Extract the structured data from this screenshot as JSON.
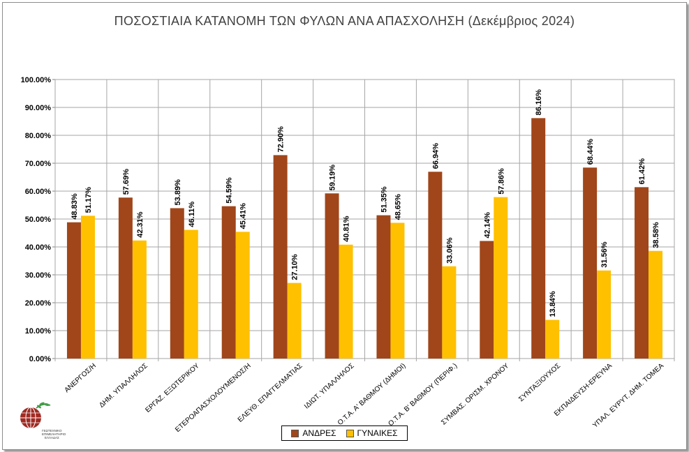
{
  "chart_data": {
    "type": "bar",
    "title": "ΠΟΣΟΣΤΙΑΙΑ ΚΑΤΑΝΟΜΗ ΤΩΝ ΦΥΛΩΝ ΑΝΑ ΑΠΑΣΧΟΛΗΣΗ (Δεκέμβριος 2024)",
    "categories": [
      "ΑΝΕΡΓΟΣ/Η",
      "ΔΗΜ. ΥΠΑΛΛΗΛΟΣ",
      "ΕΡΓΑΖ. ΕΞΩΤΕΡΙΚΟΥ",
      "ΕΤΕΡΟΑΠΑΣΧΟΛΟΥΜΕΝΟΣ/Η",
      "ΕΛΕΥΘ. ΕΠΑΓΓΕΛΜΑΤΙΑΣ",
      "ΙΔΙΩΤ. ΥΠΑΛΛΗΛΟΣ",
      "Ο.Τ.Α. Α' ΒΑΘΜΟΥ (ΔΗΜΟΙ)",
      "Ο.Τ.Α. Β' ΒΑΘΜΟΥ (ΠΕΡΙΦ.)",
      "ΣΥΜΒΑΣ. ΟΡΙΣΜ. ΧΡΟΝΟΥ",
      "ΣΥΝΤΑΞΙΟΥΧΟΣ",
      "ΕΚΠΑΙΔΕΥΣΗ-ΕΡΕΥΝΑ",
      "ΥΠΑΛ. ΕΥΡΥΤ. ΔΗΜ. ΤΟΜΕΑ"
    ],
    "series": [
      {
        "name": "ΑΝΔΡΕΣ",
        "color": "#a0461a",
        "values": [
          48.83,
          57.69,
          53.89,
          54.59,
          72.9,
          59.19,
          51.35,
          66.94,
          42.14,
          86.16,
          68.44,
          61.42
        ],
        "labels": [
          "48.83%",
          "57.69%",
          "53.89%",
          "54.59%",
          "72.90%",
          "59.19%",
          "51.35%",
          "66.94%",
          "42.14%",
          "86.16%",
          "68.44%",
          "61.42%"
        ]
      },
      {
        "name": "ΓΥΝΑΙΚΕΣ",
        "color": "#ffc000",
        "values": [
          51.17,
          42.31,
          46.11,
          45.41,
          27.1,
          40.81,
          48.65,
          33.06,
          57.86,
          13.84,
          31.56,
          38.58
        ],
        "labels": [
          "51.17%",
          "42.31%",
          "46.11%",
          "45.41%",
          "27.10%",
          "40.81%",
          "48.65%",
          "33.06%",
          "57.86%",
          "13.84%",
          "31.56%",
          "38.58%"
        ]
      }
    ],
    "ylim": [
      0,
      100
    ],
    "yticks": [
      "0.00%",
      "10.00%",
      "20.00%",
      "30.00%",
      "40.00%",
      "50.00%",
      "60.00%",
      "70.00%",
      "80.00%",
      "90.00%",
      "100.00%"
    ],
    "grid": true,
    "legend_position": "bottom"
  },
  "logo": {
    "text_lines": [
      "ΓΕΩΤΕΧΝΙΚΟ",
      "ΕΠΙΜΕΛΗΤΗΡΙΟ",
      "ΕΛΛΑΔΑΣ"
    ]
  }
}
